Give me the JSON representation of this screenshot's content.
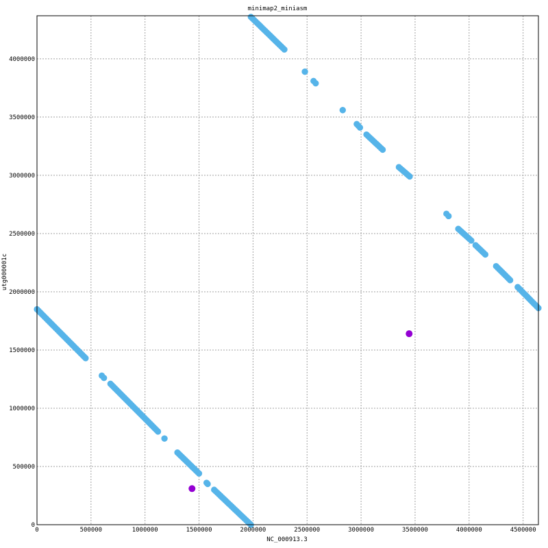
{
  "chart_data": {
    "type": "scatter",
    "title": "minimap2_miniasm",
    "xlabel": "NC_000913.3",
    "ylabel": "utg000001c",
    "xlim": [
      0,
      4641652
    ],
    "ylim": [
      0,
      4370000
    ],
    "grid": true,
    "xticks": [
      0,
      500000,
      1000000,
      1500000,
      2000000,
      2500000,
      3000000,
      3500000,
      4000000,
      4500000
    ],
    "xtick_labels": [
      "0",
      "500000",
      "1000000",
      "1500000",
      "2000000",
      "2500000",
      "3000000",
      "3500000",
      "4000000",
      "4500000"
    ],
    "yticks": [
      0,
      500000,
      1000000,
      1500000,
      2000000,
      2500000,
      3000000,
      3500000,
      4000000
    ],
    "ytick_labels": [
      "0",
      "500000",
      "1000000",
      "1500000",
      "2000000",
      "2500000",
      "3000000",
      "3500000",
      "4000000"
    ],
    "series": [
      {
        "color": "#56b4e9",
        "segments": [
          {
            "x": [
              0,
              450000
            ],
            "y": [
              1850000,
              1430000
            ]
          },
          {
            "x": [
              600000,
              620000
            ],
            "y": [
              1280000,
              1260000
            ]
          },
          {
            "x": [
              680000,
              1120000
            ],
            "y": [
              1210000,
              800000
            ]
          },
          {
            "x": [
              1180000,
              1180000
            ],
            "y": [
              740000,
              740000
            ]
          },
          {
            "x": [
              1300000,
              1500000
            ],
            "y": [
              620000,
              440000
            ]
          },
          {
            "x": [
              1570000,
              1580000
            ],
            "y": [
              360000,
              350000
            ]
          },
          {
            "x": [
              1640000,
              1980000
            ],
            "y": [
              300000,
              0
            ]
          },
          {
            "x": [
              1980000,
              2290000
            ],
            "y": [
              4360000,
              4080000
            ]
          },
          {
            "x": [
              2480000,
              2480000
            ],
            "y": [
              3890000,
              3890000
            ]
          },
          {
            "x": [
              2560000,
              2580000
            ],
            "y": [
              3810000,
              3790000
            ]
          },
          {
            "x": [
              2830000,
              2830000
            ],
            "y": [
              3560000,
              3560000
            ]
          },
          {
            "x": [
              2960000,
              2990000
            ],
            "y": [
              3440000,
              3410000
            ]
          },
          {
            "x": [
              3050000,
              3200000
            ],
            "y": [
              3350000,
              3220000
            ]
          },
          {
            "x": [
              3350000,
              3450000
            ],
            "y": [
              3070000,
              2990000
            ]
          },
          {
            "x": [
              3790000,
              3810000
            ],
            "y": [
              2670000,
              2650000
            ]
          },
          {
            "x": [
              3900000,
              4020000
            ],
            "y": [
              2540000,
              2440000
            ]
          },
          {
            "x": [
              4060000,
              4150000
            ],
            "y": [
              2400000,
              2320000
            ]
          },
          {
            "x": [
              4250000,
              4380000
            ],
            "y": [
              2220000,
              2100000
            ]
          },
          {
            "x": [
              4450000,
              4641652
            ],
            "y": [
              2040000,
              1860000
            ]
          }
        ]
      },
      {
        "color": "#9400d3",
        "points": [
          {
            "x": 1435000,
            "y": 310000
          },
          {
            "x": 3445000,
            "y": 1640000
          }
        ]
      }
    ]
  }
}
